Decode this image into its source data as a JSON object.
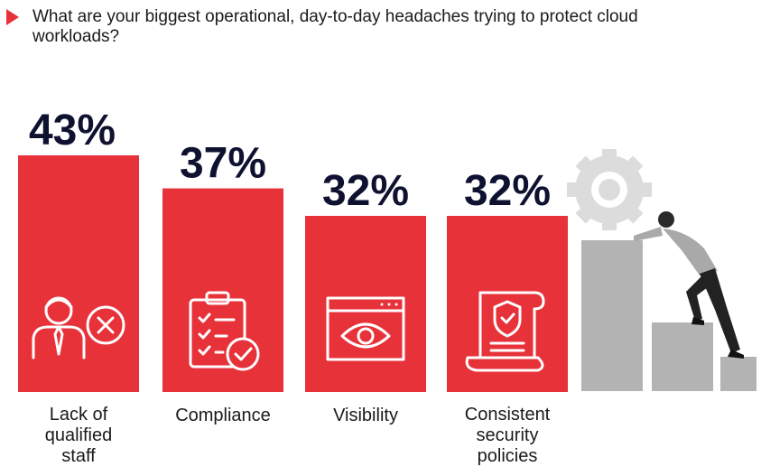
{
  "question": "What are your biggest operational, day-to-day headaches trying to protect cloud workloads?",
  "chart_data": {
    "type": "bar",
    "categories": [
      "Lack of qualified staff",
      "Compliance",
      "Visibility",
      "Consistent security policies"
    ],
    "category_lines": [
      [
        "Lack of",
        "qualified",
        "staff"
      ],
      [
        "Compliance"
      ],
      [
        "Visibility"
      ],
      [
        "Consistent",
        "security",
        "policies"
      ]
    ],
    "values": [
      43,
      37,
      32,
      32
    ],
    "value_labels": [
      "43%",
      "37%",
      "32%",
      "32%"
    ],
    "icons": [
      "person-with-x-icon",
      "clipboard-checklist-icon",
      "browser-eye-icon",
      "shield-document-icon"
    ],
    "bar_color": "#e8323a",
    "label_color": "#0e1230",
    "ylim": [
      0,
      43
    ]
  }
}
